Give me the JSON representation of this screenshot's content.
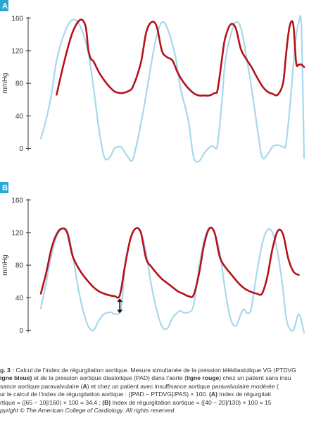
{
  "chart_data": [
    {
      "type": "line",
      "panel_label": "A",
      "ylabel": "mmHg",
      "yticks": [
        0,
        40,
        80,
        120,
        160
      ],
      "ylim": [
        -10,
        165
      ],
      "xlim": [
        0,
        100
      ],
      "grid": false,
      "series": [
        {
          "name": "ligne bleue",
          "color": "#a8d8ec",
          "x": [
            0,
            2,
            4,
            6,
            9,
            12,
            15,
            18,
            20,
            22,
            24,
            26,
            28,
            30,
            31,
            33,
            35,
            38,
            40,
            42,
            44,
            46,
            48,
            51,
            53,
            56,
            58,
            60,
            62,
            64,
            65,
            66,
            67,
            68,
            69,
            70,
            72,
            74,
            76,
            78,
            80,
            82,
            84,
            86,
            88,
            90,
            92,
            93,
            94,
            95,
            96,
            97,
            98,
            99,
            100
          ],
          "values": [
            12,
            35,
            66,
            108,
            142,
            158,
            150,
            118,
            75,
            25,
            -10,
            -12,
            0,
            2,
            0,
            -10,
            -13,
            30,
            66,
            105,
            138,
            155,
            148,
            115,
            75,
            35,
            -10,
            -16,
            -6,
            1,
            3,
            1,
            2,
            30,
            66,
            105,
            138,
            155,
            148,
            115,
            75,
            30,
            -10,
            -8,
            2,
            4,
            2,
            3,
            30,
            66,
            105,
            138,
            155,
            148,
            -12
          ]
        },
        {
          "name": "ligne rouge",
          "color": "#b5121b",
          "x": [
            6,
            9,
            12,
            15,
            17,
            18,
            19,
            20,
            22,
            24,
            26,
            28,
            30,
            31,
            33,
            35,
            38,
            40,
            42,
            44,
            46,
            48,
            50,
            52,
            54,
            56,
            58,
            60,
            62,
            64,
            66,
            67,
            68,
            69,
            70,
            72,
            74,
            76,
            78,
            80,
            82,
            84,
            86,
            88,
            90,
            92,
            93,
            94,
            95,
            96,
            97,
            98,
            99,
            100
          ],
          "values": [
            66,
            108,
            142,
            158,
            150,
            122,
            110,
            107,
            94,
            84,
            76,
            70,
            68,
            68,
            70,
            76,
            105,
            142,
            155,
            150,
            120,
            112,
            108,
            93,
            82,
            74,
            68,
            65,
            65,
            65,
            68,
            70,
            90,
            115,
            135,
            152,
            148,
            122,
            110,
            100,
            88,
            77,
            70,
            67,
            66,
            80,
            110,
            140,
            155,
            150,
            105,
            103,
            103,
            100
          ]
        }
      ]
    },
    {
      "type": "line",
      "panel_label": "B",
      "ylabel": "mmHg",
      "yticks": [
        0,
        40,
        80,
        120,
        160
      ],
      "ylim": [
        -10,
        165
      ],
      "xlim": [
        0,
        100
      ],
      "grid": false,
      "annotation": {
        "type": "double-arrow",
        "x": 30,
        "y_from": 40,
        "y_to": 20
      },
      "series": [
        {
          "name": "ligne bleue",
          "color": "#a8d8ec",
          "x": [
            0,
            2,
            4,
            6,
            8,
            10,
            12,
            14,
            16,
            18,
            20,
            22,
            24,
            26,
            27,
            28,
            30,
            31,
            32,
            34,
            36,
            38,
            40,
            42,
            44,
            46,
            48,
            50,
            52,
            53,
            54,
            56,
            58,
            60,
            62,
            64,
            66,
            68,
            70,
            72,
            74,
            76,
            77,
            78,
            79,
            80,
            82,
            84,
            86,
            88,
            90,
            92,
            93,
            94,
            96,
            98,
            100
          ],
          "values": [
            27,
            58,
            92,
            115,
            125,
            122,
            95,
            55,
            25,
            5,
            0,
            12,
            20,
            22,
            22,
            20,
            22,
            40,
            80,
            112,
            125,
            120,
            95,
            55,
            25,
            5,
            2,
            15,
            22,
            24,
            22,
            22,
            30,
            75,
            110,
            126,
            120,
            95,
            50,
            15,
            5,
            20,
            26,
            22,
            21,
            28,
            70,
            105,
            123,
            120,
            95,
            50,
            20,
            5,
            0,
            20,
            -3
          ]
        },
        {
          "name": "ligne rouge",
          "color": "#b5121b",
          "x": [
            0,
            2,
            4,
            6,
            8,
            10,
            12,
            14,
            16,
            18,
            20,
            22,
            24,
            26,
            28,
            30,
            32,
            34,
            36,
            38,
            40,
            42,
            44,
            46,
            48,
            50,
            52,
            54,
            56,
            58,
            60,
            62,
            64,
            66,
            68,
            70,
            72,
            74,
            76,
            78,
            80,
            82,
            84,
            86,
            88,
            90,
            92,
            94,
            96,
            98
          ],
          "values": [
            45,
            70,
            100,
            118,
            125,
            120,
            92,
            78,
            68,
            60,
            53,
            48,
            45,
            43,
            42,
            43,
            80,
            112,
            125,
            120,
            88,
            78,
            70,
            63,
            58,
            53,
            48,
            45,
            42,
            43,
            68,
            105,
            125,
            120,
            90,
            78,
            70,
            62,
            55,
            50,
            47,
            45,
            45,
            65,
            100,
            122,
            118,
            88,
            72,
            68
          ]
        }
      ]
    }
  ],
  "caption": {
    "lines": [
      [
        {
          "t": "g. 3 : ",
          "b": true
        },
        {
          "t": "Calcul de l’index de régurgitation aortique. Mesure simultanée de la pression télédiastolique VG (PTDVG"
        }
      ],
      [
        {
          "t": "igne bleue)",
          "b": true
        },
        {
          "t": " et de la pression aortique diastolique (PAD) dans l’aorte ("
        },
        {
          "t": "ligne rouge",
          "b": true
        },
        {
          "t": ") chez un patient sans insu"
        }
      ],
      [
        {
          "t": "sance aortique paravalvulaire ("
        },
        {
          "t": "A",
          "b": true
        },
        {
          "t": ") et chez un patient avec insuffisance aortique paravalvulaire modérée ("
        }
      ],
      [
        {
          "t": "ur le calcul de l’index de régurgitation aortique : ([PAD – PTDVG]/PAS) × 100. "
        },
        {
          "t": "(A)",
          "b": true
        },
        {
          "t": " Index de régurgitati"
        }
      ],
      [
        {
          "t": "rtique = ([65 − 10]/160) × 100 = 34,4 ; "
        },
        {
          "t": "(B)",
          "b": true
        },
        {
          "t": " Index de régurgitation aortique = ([40 − 20]/130) × 100 = 15"
        }
      ],
      [
        {
          "t": "pyright © ",
          "i": true
        },
        {
          "t": "The American College of Cardiology. All rights reserved.",
          "i": true
        }
      ]
    ]
  }
}
